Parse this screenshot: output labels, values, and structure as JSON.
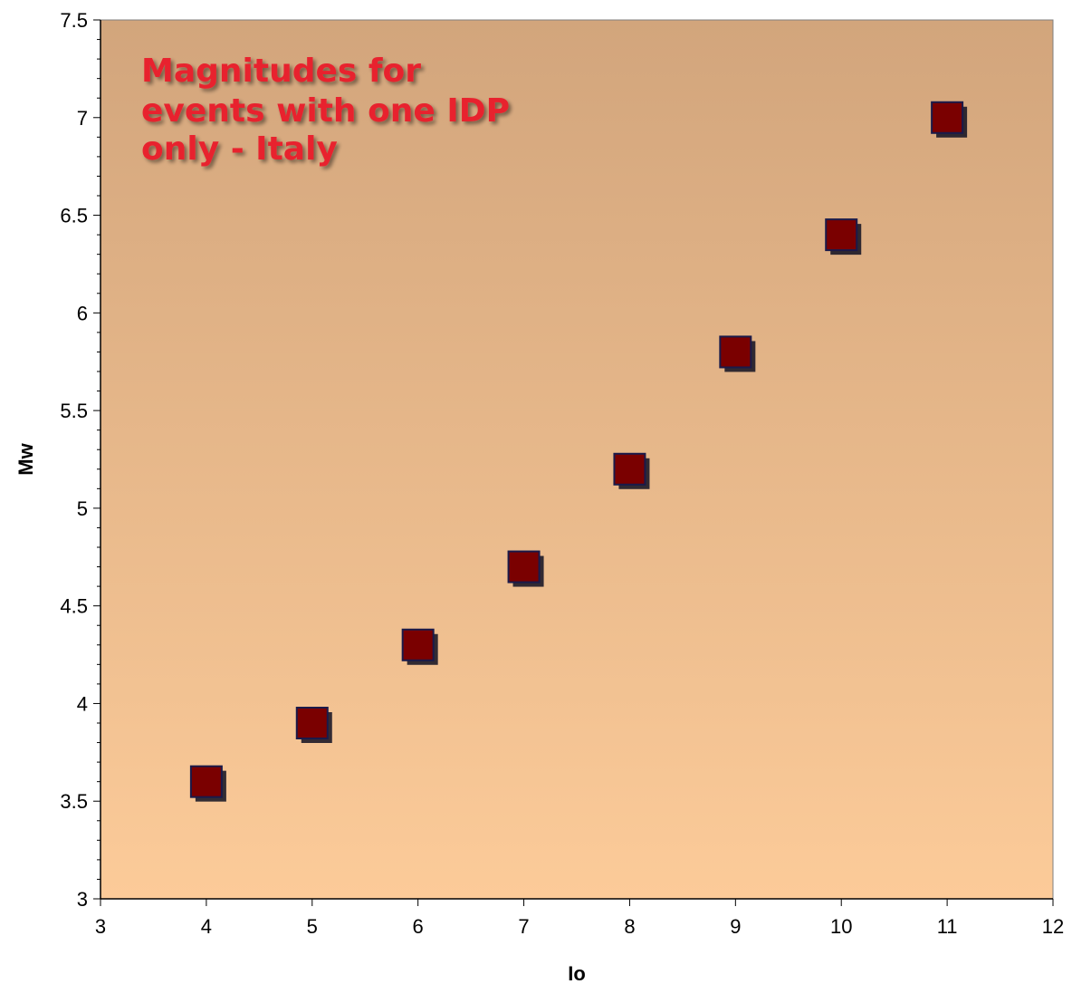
{
  "chart_data": {
    "type": "scatter",
    "title": "",
    "xlabel": "Io",
    "ylabel": "Mw",
    "xlim": [
      3,
      12
    ],
    "ylim": [
      3,
      7.5
    ],
    "xticks": [
      "3",
      "4",
      "5",
      "6",
      "7",
      "8",
      "9",
      "10",
      "11",
      "12"
    ],
    "yticks": [
      "3",
      "3.5",
      "4",
      "4.5",
      "5",
      "5.5",
      "6",
      "6.5",
      "7",
      "7.5"
    ],
    "series": [
      {
        "x": [
          4,
          5,
          6,
          7,
          8,
          9,
          10,
          11
        ],
        "y": [
          3.6,
          3.9,
          4.3,
          4.7,
          5.2,
          5.8,
          6.4,
          7.0
        ]
      }
    ],
    "annotation": {
      "lines": [
        "Magnitudes for",
        "events with one IDP",
        "only - Italy"
      ],
      "color": "#e8242e",
      "position": "top-left"
    },
    "colors": {
      "marker": "#7a0000",
      "marker_border": "#1a1a4a",
      "marker_shadow": "#111122",
      "plot_bg_top": "#d2a57c",
      "plot_bg_bottom": "#fccb99"
    },
    "grid": false,
    "legend": "none"
  }
}
